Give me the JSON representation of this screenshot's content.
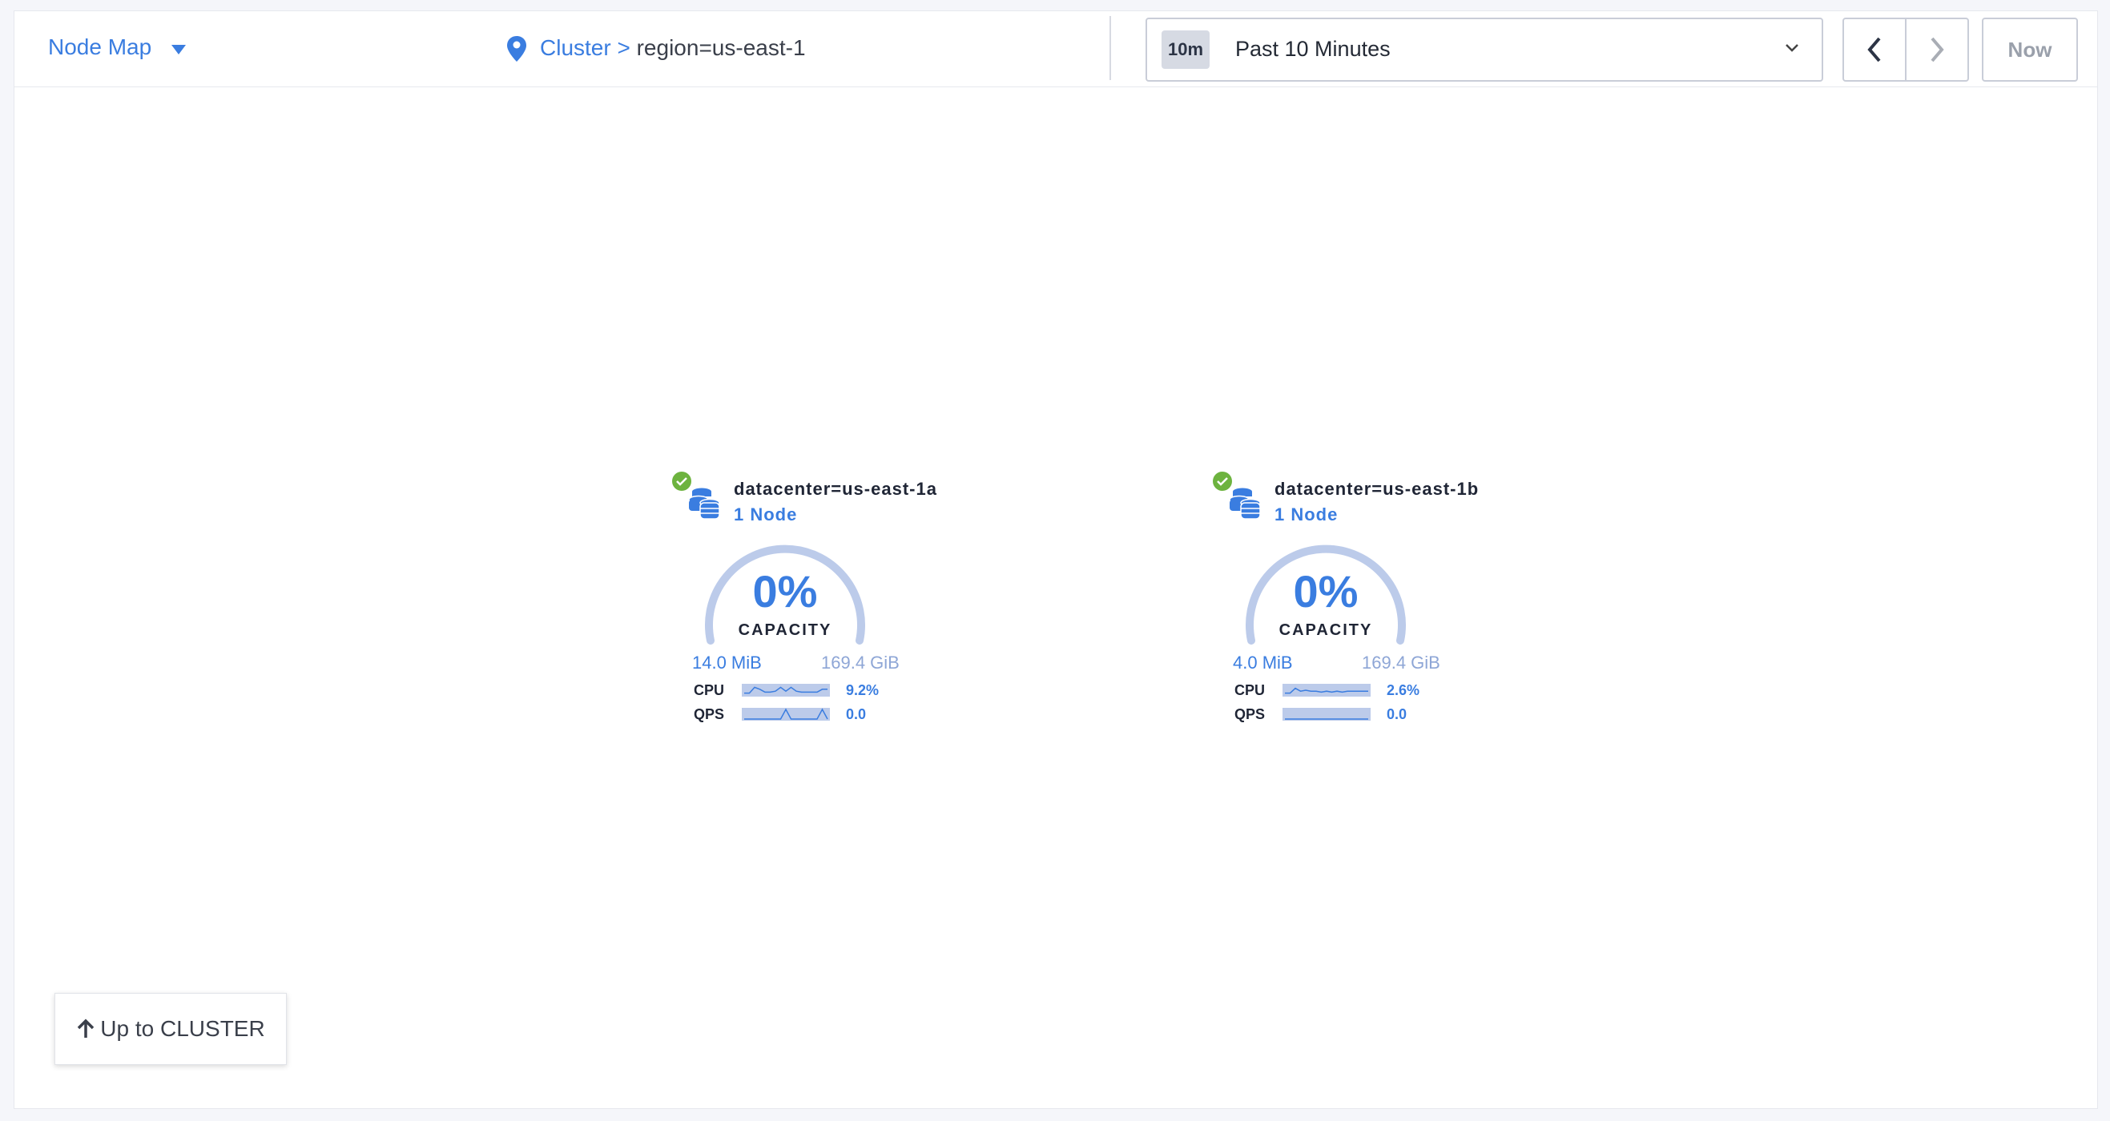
{
  "header": {
    "view_selector": "Node Map",
    "breadcrumb": {
      "root": "Cluster >",
      "current": "region=us-east-1"
    },
    "time": {
      "badge": "10m",
      "label": "Past 10 Minutes"
    },
    "now_label": "Now"
  },
  "colors": {
    "accent": "#3a7de0",
    "healthy": "#6db33f",
    "gauge_track": "#bccbea"
  },
  "datacenters": [
    {
      "name": "datacenter=us-east-1a",
      "nodes": "1 Node",
      "status": "healthy",
      "capacity_percent": "0%",
      "capacity_label": "CAPACITY",
      "used": "14.0 MiB",
      "total": "169.4 GiB",
      "cpu_label": "CPU",
      "cpu_value": "9.2%",
      "qps_label": "QPS",
      "qps_value": "0.0",
      "cpu_spark": [
        0.2,
        0.2,
        0.8,
        0.6,
        0.3,
        0.3,
        0.4,
        0.8,
        0.4,
        0.8,
        0.4,
        0.3,
        0.3,
        0.3,
        0.3,
        0.6,
        0.6
      ],
      "qps_spark": [
        0,
        0,
        0,
        0,
        0,
        0,
        0,
        0,
        1,
        0,
        0,
        0,
        0,
        0,
        0,
        1,
        0
      ]
    },
    {
      "name": "datacenter=us-east-1b",
      "nodes": "1 Node",
      "status": "healthy",
      "capacity_percent": "0%",
      "capacity_label": "CAPACITY",
      "used": "4.0 MiB",
      "total": "169.4 GiB",
      "cpu_label": "CPU",
      "cpu_value": "2.6%",
      "qps_label": "QPS",
      "qps_value": "0.0",
      "cpu_spark": [
        0.2,
        0.2,
        0.7,
        0.4,
        0.5,
        0.4,
        0.4,
        0.3,
        0.4,
        0.3,
        0.4,
        0.3,
        0.4,
        0.4,
        0.4,
        0.4,
        0.4
      ],
      "qps_spark": [
        0,
        0,
        0,
        0,
        0,
        0,
        0,
        0,
        0,
        0,
        0,
        0,
        0,
        0,
        0,
        0,
        0
      ]
    }
  ],
  "footer": {
    "up_button": "Up to CLUSTER"
  }
}
